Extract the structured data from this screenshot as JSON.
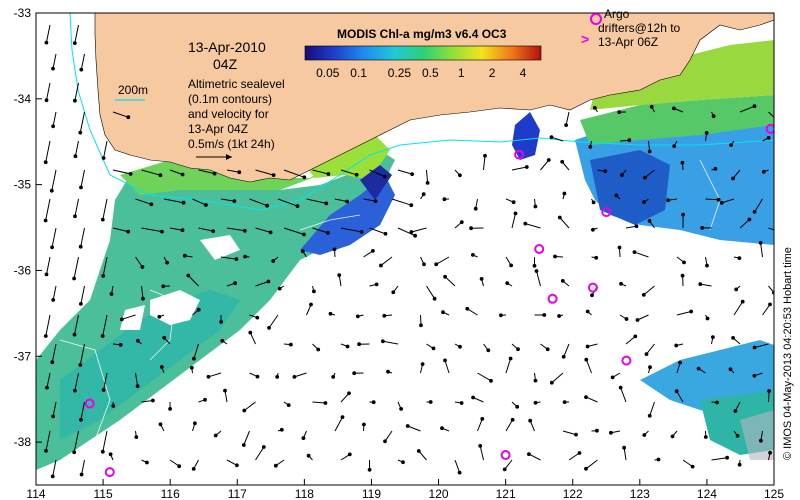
{
  "map": {
    "product_title": "MODIS Chl-a mg/m3 v6.4 OC3",
    "date_line1": "13-Apr-2010",
    "date_line2": "04Z",
    "contour_legend_label": "200m",
    "altimetry_lines": [
      "Altimetric sealevel",
      "(0.1m contours)",
      "and velocity for",
      "13-Apr 04Z"
    ],
    "velocity_scale_line1": "0.5m/s (1kt 24h)",
    "argo_label_lines": [
      "Argo",
      "drifters@12h to",
      "13-Apr 06Z"
    ],
    "argo_marker_symbol": ">",
    "credit": "© IMOS 04-May-2013 04:20:53 Hobart time",
    "colorbar_ticks": [
      "0.05",
      "0.1",
      "0.25",
      "0.5",
      "1",
      "2",
      "4"
    ],
    "lon_ticks": [
      "114",
      "115",
      "116",
      "117",
      "118",
      "119",
      "120",
      "121",
      "122",
      "123",
      "124",
      "125"
    ],
    "lat_ticks": [
      "-33",
      "-34",
      "-35",
      "-36",
      "-37",
      "-38"
    ],
    "colors": {
      "land": "#f7c9a0",
      "argo": "#e800e8",
      "contour200": "#00e5ee",
      "ocean_nodata": "#ffffff"
    },
    "argo_positions_lonlat": [
      [
        121.2,
        -34.65
      ],
      [
        122.5,
        -35.32
      ],
      [
        121.5,
        -35.75
      ],
      [
        122.3,
        -36.2
      ],
      [
        121.7,
        -36.33
      ],
      [
        122.8,
        -37.05
      ],
      [
        114.8,
        -37.55
      ],
      [
        115.1,
        -38.35
      ],
      [
        121.0,
        -38.15
      ],
      [
        124.95,
        -34.35
      ]
    ]
  }
}
